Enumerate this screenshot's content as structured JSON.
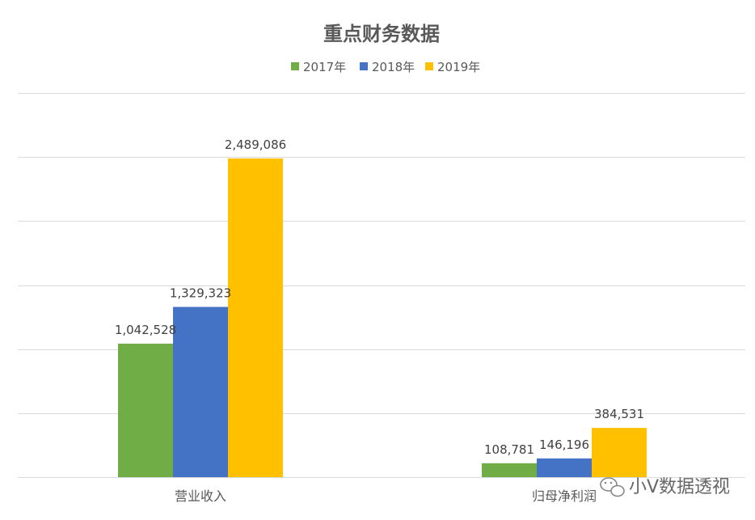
{
  "chart_data": {
    "type": "bar",
    "title": "重点财务数据",
    "categories": [
      "营业收入",
      "归母净利润"
    ],
    "series": [
      {
        "name": "2017年",
        "color": "#70ad47",
        "values": [
          1042528,
          108781
        ],
        "labels": [
          "1,042,528",
          "108,781"
        ]
      },
      {
        "name": "2018年",
        "color": "#4472c4",
        "values": [
          1329323,
          146196
        ],
        "labels": [
          "1,329,323",
          "146,196"
        ]
      },
      {
        "name": "2019年",
        "color": "#ffc000",
        "values": [
          2489086,
          384531
        ],
        "labels": [
          "2,489,086",
          "384,531"
        ]
      }
    ],
    "ylim": [
      0,
      3000000
    ],
    "grid": true,
    "legend_position": "top-center",
    "xlabel": "",
    "ylabel": ""
  },
  "watermark": {
    "text": "小V数据透视",
    "icon": "wechat-icon"
  }
}
